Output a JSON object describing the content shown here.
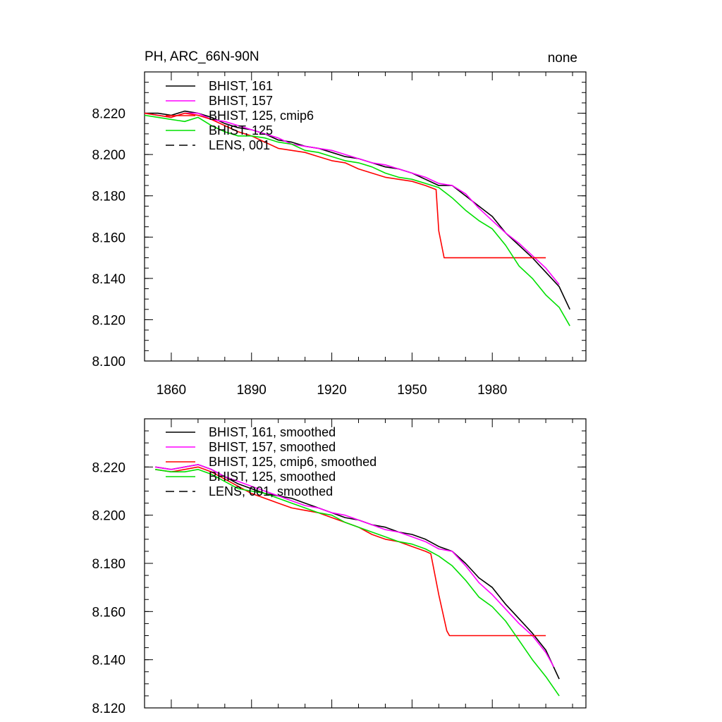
{
  "chart_data": [
    {
      "type": "line",
      "title_left": "PH, ARC_66N-90N",
      "title_right": "none",
      "xlim": [
        1850,
        2015
      ],
      "ylim": [
        8.1,
        8.24
      ],
      "xticks": [
        1860,
        1890,
        1920,
        1950,
        1980
      ],
      "xtick_labels": [
        "1860",
        "1890",
        "1920",
        "1950",
        "1980"
      ],
      "yticks": [
        8.1,
        8.12,
        8.14,
        8.16,
        8.18,
        8.2,
        8.22
      ],
      "ytick_labels": [
        "8.100",
        "8.120",
        "8.140",
        "8.160",
        "8.180",
        "8.200",
        "8.220"
      ],
      "legend_position": "top-left",
      "legend": [
        {
          "label": "BHIST, 161",
          "color": "#000000",
          "dash": "solid"
        },
        {
          "label": "BHIST, 157",
          "color": "#ff00ff",
          "dash": "solid"
        },
        {
          "label": "BHIST, 125, cmip6",
          "color": "#ff0000",
          "dash": "solid"
        },
        {
          "label": "BHIST, 125",
          "color": "#00e000",
          "dash": "solid"
        },
        {
          "label": "LENS, 001",
          "color": "#000000",
          "dash": "dashed"
        }
      ],
      "series": [
        {
          "name": "BHIST, 161",
          "color": "#000000",
          "x": [
            1850,
            1855,
            1860,
            1865,
            1870,
            1875,
            1880,
            1885,
            1890,
            1895,
            1900,
            1905,
            1910,
            1915,
            1920,
            1925,
            1930,
            1935,
            1940,
            1945,
            1950,
            1955,
            1960,
            1965,
            1970,
            1975,
            1980,
            1985,
            1990,
            1995,
            2000,
            2005,
            2009
          ],
          "y": [
            8.22,
            8.22,
            8.219,
            8.221,
            8.22,
            8.218,
            8.215,
            8.213,
            8.212,
            8.21,
            8.207,
            8.206,
            8.204,
            8.203,
            8.201,
            8.199,
            8.198,
            8.196,
            8.194,
            8.193,
            8.191,
            8.188,
            8.185,
            8.185,
            8.18,
            8.175,
            8.17,
            8.162,
            8.156,
            8.15,
            8.143,
            8.136,
            8.125
          ]
        },
        {
          "name": "BHIST, 157",
          "color": "#ff00ff",
          "x": [
            1850,
            1855,
            1860,
            1865,
            1870,
            1875,
            1880,
            1885,
            1890,
            1895,
            1900,
            1905,
            1910,
            1915,
            1920,
            1925,
            1930,
            1935,
            1940,
            1945,
            1950,
            1955,
            1960,
            1965,
            1970,
            1975,
            1980,
            1985,
            1990,
            1995,
            2000,
            2005
          ],
          "y": [
            8.22,
            8.219,
            8.218,
            8.22,
            8.22,
            8.217,
            8.216,
            8.214,
            8.212,
            8.21,
            8.208,
            8.205,
            8.204,
            8.203,
            8.202,
            8.2,
            8.198,
            8.196,
            8.195,
            8.193,
            8.191,
            8.189,
            8.186,
            8.185,
            8.181,
            8.174,
            8.168,
            8.162,
            8.157,
            8.151,
            8.145,
            8.137
          ]
        },
        {
          "name": "BHIST, 125, cmip6",
          "color": "#ff0000",
          "x": [
            1850,
            1855,
            1860,
            1865,
            1870,
            1875,
            1880,
            1885,
            1890,
            1895,
            1900,
            1905,
            1910,
            1915,
            1920,
            1925,
            1930,
            1935,
            1940,
            1945,
            1950,
            1955,
            1959,
            1960,
            1962,
            2000
          ],
          "y": [
            8.22,
            8.219,
            8.218,
            8.22,
            8.219,
            8.217,
            8.214,
            8.211,
            8.209,
            8.206,
            8.203,
            8.202,
            8.201,
            8.199,
            8.197,
            8.196,
            8.193,
            8.191,
            8.189,
            8.188,
            8.187,
            8.185,
            8.183,
            8.163,
            8.15,
            8.15
          ]
        },
        {
          "name": "BHIST, 125",
          "color": "#00e000",
          "x": [
            1850,
            1855,
            1860,
            1865,
            1870,
            1875,
            1880,
            1885,
            1890,
            1895,
            1900,
            1905,
            1910,
            1915,
            1920,
            1925,
            1930,
            1935,
            1940,
            1945,
            1950,
            1955,
            1960,
            1965,
            1970,
            1975,
            1980,
            1985,
            1990,
            1995,
            2000,
            2005,
            2009
          ],
          "y": [
            8.219,
            8.218,
            8.217,
            8.216,
            8.218,
            8.214,
            8.211,
            8.209,
            8.209,
            8.208,
            8.206,
            8.205,
            8.202,
            8.201,
            8.199,
            8.197,
            8.196,
            8.194,
            8.191,
            8.189,
            8.188,
            8.186,
            8.184,
            8.179,
            8.173,
            8.168,
            8.164,
            8.156,
            8.146,
            8.14,
            8.132,
            8.126,
            8.117
          ]
        }
      ]
    },
    {
      "type": "line",
      "xlim": [
        1850,
        2015
      ],
      "ylim": [
        8.12,
        8.24
      ],
      "xticks": [
        1860,
        1890,
        1920,
        1950,
        1980
      ],
      "yticks": [
        8.12,
        8.14,
        8.16,
        8.18,
        8.2,
        8.22
      ],
      "ytick_labels": [
        "8.120",
        "8.140",
        "8.160",
        "8.180",
        "8.200",
        "8.220"
      ],
      "legend_position": "top-left",
      "legend": [
        {
          "label": "BHIST, 161, smoothed",
          "color": "#000000",
          "dash": "solid"
        },
        {
          "label": "BHIST, 157, smoothed",
          "color": "#ff00ff",
          "dash": "solid"
        },
        {
          "label": "BHIST, 125, cmip6, smoothed",
          "color": "#ff0000",
          "dash": "solid"
        },
        {
          "label": "BHIST, 125, smoothed",
          "color": "#00e000",
          "dash": "solid"
        },
        {
          "label": "LENS, 001, smoothed",
          "color": "#000000",
          "dash": "dashed"
        }
      ],
      "series": [
        {
          "name": "BHIST, 161, smoothed",
          "color": "#000000",
          "x": [
            1854,
            1860,
            1865,
            1870,
            1875,
            1880,
            1885,
            1890,
            1895,
            1900,
            1905,
            1910,
            1915,
            1920,
            1925,
            1930,
            1935,
            1940,
            1945,
            1950,
            1955,
            1960,
            1965,
            1970,
            1975,
            1980,
            1985,
            1990,
            1995,
            2000,
            2005
          ],
          "y": [
            8.22,
            8.219,
            8.22,
            8.221,
            8.219,
            8.216,
            8.213,
            8.211,
            8.209,
            8.208,
            8.207,
            8.205,
            8.203,
            8.201,
            8.199,
            8.198,
            8.196,
            8.195,
            8.193,
            8.192,
            8.19,
            8.187,
            8.185,
            8.18,
            8.174,
            8.17,
            8.163,
            8.157,
            8.151,
            8.144,
            8.132
          ]
        },
        {
          "name": "BHIST, 157, smoothed",
          "color": "#ff00ff",
          "x": [
            1854,
            1860,
            1865,
            1870,
            1875,
            1880,
            1885,
            1890,
            1895,
            1900,
            1905,
            1910,
            1915,
            1920,
            1925,
            1930,
            1935,
            1940,
            1945,
            1950,
            1955,
            1960,
            1965,
            1970,
            1975,
            1980,
            1985,
            1990,
            1995,
            2000,
            2003
          ],
          "y": [
            8.22,
            8.219,
            8.22,
            8.221,
            8.219,
            8.216,
            8.214,
            8.212,
            8.21,
            8.208,
            8.206,
            8.204,
            8.203,
            8.201,
            8.2,
            8.198,
            8.196,
            8.194,
            8.193,
            8.191,
            8.189,
            8.186,
            8.185,
            8.179,
            8.172,
            8.167,
            8.161,
            8.155,
            8.15,
            8.143,
            8.137
          ]
        },
        {
          "name": "BHIST, 125, cmip6, smoothed",
          "color": "#ff0000",
          "x": [
            1854,
            1860,
            1865,
            1870,
            1875,
            1880,
            1885,
            1890,
            1895,
            1900,
            1905,
            1910,
            1915,
            1920,
            1925,
            1930,
            1935,
            1940,
            1945,
            1950,
            1955,
            1957,
            1960,
            1963,
            1964,
            2000
          ],
          "y": [
            8.219,
            8.218,
            8.219,
            8.22,
            8.218,
            8.215,
            8.212,
            8.209,
            8.207,
            8.205,
            8.203,
            8.202,
            8.201,
            8.199,
            8.197,
            8.195,
            8.192,
            8.19,
            8.189,
            8.187,
            8.185,
            8.184,
            8.167,
            8.152,
            8.15,
            8.15
          ]
        },
        {
          "name": "BHIST, 125, smoothed",
          "color": "#00e000",
          "x": [
            1854,
            1860,
            1865,
            1870,
            1875,
            1880,
            1885,
            1890,
            1895,
            1900,
            1905,
            1910,
            1915,
            1920,
            1925,
            1930,
            1935,
            1940,
            1945,
            1950,
            1955,
            1960,
            1965,
            1970,
            1975,
            1980,
            1985,
            1990,
            1995,
            2000,
            2005
          ],
          "y": [
            8.219,
            8.218,
            8.218,
            8.219,
            8.217,
            8.214,
            8.211,
            8.21,
            8.209,
            8.207,
            8.205,
            8.203,
            8.201,
            8.2,
            8.197,
            8.195,
            8.193,
            8.191,
            8.189,
            8.188,
            8.186,
            8.183,
            8.179,
            8.173,
            8.166,
            8.162,
            8.156,
            8.148,
            8.14,
            8.133,
            8.125
          ]
        }
      ]
    }
  ]
}
